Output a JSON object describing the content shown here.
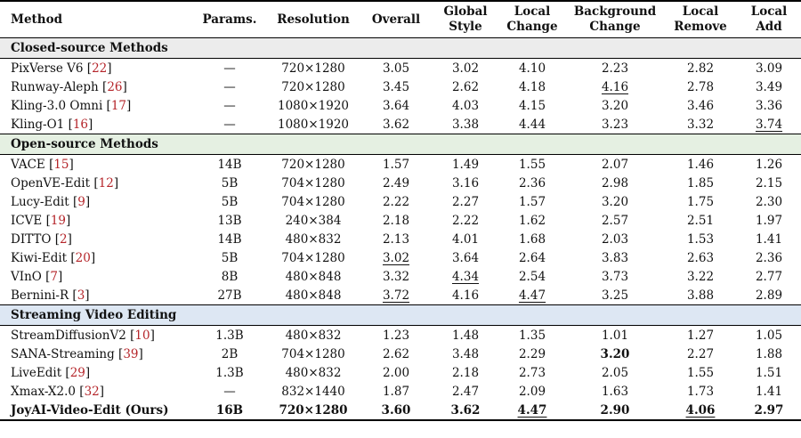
{
  "columns": [
    "Method",
    "Params.",
    "Resolution",
    "Overall",
    "Global\nStyle",
    "Local\nChange",
    "Background\nChange",
    "Local\nRemove",
    "Local\nAdd"
  ],
  "colors": {
    "closed": "#ececec",
    "open": "#e5f0e2",
    "streaming": "#dde7f3",
    "ref": "#b5252a"
  },
  "sections": [
    {
      "title": "Closed-source Methods",
      "color": "closed",
      "rows": [
        {
          "name": "PixVerse V6",
          "ref": "22",
          "params": "—",
          "res": "720×1280",
          "vals": [
            "3.05",
            "3.02",
            "4.10",
            "2.23",
            "2.82",
            "3.09"
          ]
        },
        {
          "name": "Runway-Aleph",
          "ref": "26",
          "params": "—",
          "res": "720×1280",
          "vals": [
            "3.45",
            "2.62",
            "4.18",
            "4.16",
            "2.78",
            "3.49"
          ],
          "underline": [
            3
          ]
        },
        {
          "name": "Kling-3.0 Omni",
          "ref": "17",
          "params": "—",
          "res": "1080×1920",
          "vals": [
            "3.64",
            "4.03",
            "4.15",
            "3.20",
            "3.46",
            "3.36"
          ]
        },
        {
          "name": "Kling-O1",
          "ref": "16",
          "params": "—",
          "res": "1080×1920",
          "vals": [
            "3.62",
            "3.38",
            "4.44",
            "3.23",
            "3.32",
            "3.74"
          ],
          "underline": [
            5
          ]
        }
      ]
    },
    {
      "title": "Open-source Methods",
      "color": "open",
      "rows": [
        {
          "name": "VACE",
          "ref": "15",
          "params": "14B",
          "res": "720×1280",
          "vals": [
            "1.57",
            "1.49",
            "1.55",
            "2.07",
            "1.46",
            "1.26"
          ]
        },
        {
          "name": "OpenVE-Edit",
          "ref": "12",
          "params": "5B",
          "res": "704×1280",
          "vals": [
            "2.49",
            "3.16",
            "2.36",
            "2.98",
            "1.85",
            "2.15"
          ]
        },
        {
          "name": "Lucy-Edit",
          "ref": "9",
          "params": "5B",
          "res": "704×1280",
          "vals": [
            "2.22",
            "2.27",
            "1.57",
            "3.20",
            "1.75",
            "2.30"
          ]
        },
        {
          "name": "ICVE",
          "ref": "19",
          "params": "13B",
          "res": "240×384",
          "vals": [
            "2.18",
            "2.22",
            "1.62",
            "2.57",
            "2.51",
            "1.97"
          ]
        },
        {
          "name": "DITTO",
          "ref": "2",
          "params": "14B",
          "res": "480×832",
          "vals": [
            "2.13",
            "4.01",
            "1.68",
            "2.03",
            "1.53",
            "1.41"
          ]
        },
        {
          "name": "Kiwi-Edit",
          "ref": "20",
          "params": "5B",
          "res": "704×1280",
          "vals": [
            "3.02",
            "3.64",
            "2.64",
            "3.83",
            "2.63",
            "2.36"
          ],
          "underline": [
            0
          ]
        },
        {
          "name": "VInO",
          "ref": "7",
          "params": "8B",
          "res": "480×848",
          "vals": [
            "3.32",
            "4.34",
            "2.54",
            "3.73",
            "3.22",
            "2.77"
          ],
          "underline": [
            1
          ]
        },
        {
          "name": "Bernini-R",
          "ref": "3",
          "params": "27B",
          "res": "480×848",
          "vals": [
            "3.72",
            "4.16",
            "4.47",
            "3.25",
            "3.88",
            "2.89"
          ],
          "underline": [
            0,
            2
          ]
        }
      ]
    },
    {
      "title": "Streaming Video Editing",
      "color": "streaming",
      "rows": [
        {
          "name": "StreamDiffusionV2",
          "ref": "10",
          "params": "1.3B",
          "res": "480×832",
          "vals": [
            "1.23",
            "1.48",
            "1.35",
            "1.01",
            "1.27",
            "1.05"
          ]
        },
        {
          "name": "SANA-Streaming",
          "ref": "39",
          "params": "2B",
          "res": "704×1280",
          "vals": [
            "2.62",
            "3.48",
            "2.29",
            "3.20",
            "2.27",
            "1.88"
          ],
          "bold": [
            3
          ]
        },
        {
          "name": "LiveEdit",
          "ref": "29",
          "params": "1.3B",
          "res": "480×832",
          "vals": [
            "2.00",
            "2.18",
            "2.73",
            "2.05",
            "1.55",
            "1.51"
          ]
        },
        {
          "name": "Xmax-X2.0",
          "ref": "32",
          "params": "—",
          "res": "832×1440",
          "vals": [
            "1.87",
            "2.47",
            "2.09",
            "1.63",
            "1.73",
            "1.41"
          ]
        },
        {
          "name": "JoyAI-Video-Edit (Ours)",
          "ref": "",
          "params": "16B",
          "res": "720×1280",
          "vals": [
            "3.60",
            "3.62",
            "4.47",
            "2.90",
            "4.06",
            "2.97"
          ],
          "ours": true,
          "bold": [
            0,
            1,
            2,
            4,
            5
          ],
          "underline": [
            2,
            4
          ]
        }
      ]
    }
  ]
}
